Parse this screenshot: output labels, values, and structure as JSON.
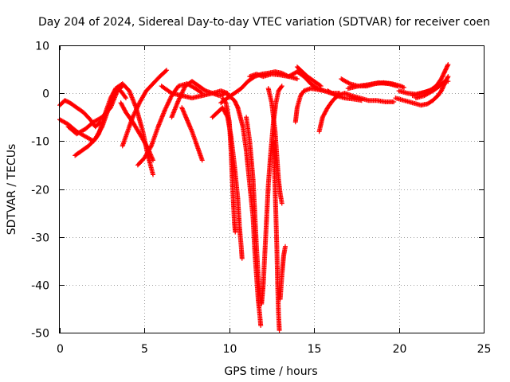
{
  "chart_data": {
    "type": "scatter",
    "title": "Day 204 of 2024, Sidereal Day-to-day VTEC variation (SDTVAR) for receiver coen",
    "xlabel": "GPS time / hours",
    "ylabel": "SDTVAR / TECUs",
    "xlim": [
      0,
      25
    ],
    "ylim": [
      -50,
      10
    ],
    "xticks": [
      0,
      5,
      10,
      15,
      20,
      25
    ],
    "yticks": [
      -50,
      -40,
      -30,
      -20,
      -10,
      0,
      10
    ],
    "xtick_labels": [
      "0",
      "5",
      "10",
      "15",
      "20",
      "25"
    ],
    "ytick_labels": [
      "-50",
      "-40",
      "-30",
      "-20",
      "-10",
      "0",
      "10"
    ],
    "grid": true,
    "marker": "+",
    "color": "#ff0000",
    "series": [
      {
        "name": "s1",
        "points": [
          [
            0.0,
            -2.5
          ],
          [
            0.3,
            -1.5
          ],
          [
            0.6,
            -2.0
          ],
          [
            1.0,
            -3.0
          ],
          [
            1.4,
            -4.0
          ],
          [
            1.8,
            -5.5
          ],
          [
            2.1,
            -7.0
          ],
          [
            2.4,
            -6.0
          ]
        ]
      },
      {
        "name": "s2",
        "points": [
          [
            0.0,
            -5.5
          ],
          [
            0.5,
            -6.5
          ],
          [
            1.0,
            -8.0
          ],
          [
            1.5,
            -9.0
          ],
          [
            2.0,
            -10.0
          ],
          [
            2.3,
            -8.5
          ],
          [
            2.7,
            -4.0
          ],
          [
            3.0,
            -1.0
          ],
          [
            3.3,
            1.0
          ],
          [
            3.6,
            0.5
          ],
          [
            3.9,
            -1.0
          ]
        ]
      },
      {
        "name": "s3",
        "points": [
          [
            0.5,
            -7.0
          ],
          [
            1.0,
            -8.5
          ],
          [
            1.5,
            -7.5
          ],
          [
            2.0,
            -6.0
          ],
          [
            2.5,
            -5.0
          ],
          [
            3.0,
            -3.0
          ],
          [
            3.4,
            0.5
          ],
          [
            3.7,
            1.5
          ]
        ]
      },
      {
        "name": "s4",
        "points": [
          [
            0.9,
            -13.0
          ],
          [
            1.3,
            -12.0
          ],
          [
            1.7,
            -11.0
          ],
          [
            2.1,
            -9.5
          ],
          [
            2.5,
            -7.0
          ],
          [
            2.9,
            -3.0
          ],
          [
            3.3,
            1.0
          ],
          [
            3.7,
            2.0
          ],
          [
            4.1,
            0.5
          ],
          [
            4.5,
            -3.0
          ],
          [
            4.9,
            -8.0
          ],
          [
            5.2,
            -13.0
          ],
          [
            5.5,
            -17.0
          ]
        ]
      },
      {
        "name": "s5",
        "points": [
          [
            3.6,
            -2.0
          ],
          [
            3.9,
            -4.0
          ],
          [
            4.3,
            -6.0
          ],
          [
            4.8,
            -9.0
          ],
          [
            5.2,
            -11.5
          ],
          [
            5.5,
            -14.0
          ]
        ]
      },
      {
        "name": "s6",
        "points": [
          [
            3.7,
            -11.0
          ],
          [
            4.0,
            -8.0
          ],
          [
            4.3,
            -5.0
          ],
          [
            4.7,
            -2.0
          ],
          [
            5.1,
            0.5
          ],
          [
            5.5,
            2.0
          ],
          [
            5.9,
            3.5
          ],
          [
            6.3,
            4.8
          ]
        ]
      },
      {
        "name": "s7",
        "points": [
          [
            4.6,
            -15.0
          ],
          [
            5.0,
            -13.5
          ],
          [
            5.4,
            -11.0
          ],
          [
            5.8,
            -7.0
          ],
          [
            6.2,
            -3.5
          ],
          [
            6.6,
            -0.5
          ],
          [
            7.0,
            1.5
          ],
          [
            7.5,
            2.0
          ],
          [
            8.0,
            1.0
          ],
          [
            8.4,
            0.0
          ]
        ]
      },
      {
        "name": "s8",
        "points": [
          [
            6.6,
            -5.0
          ],
          [
            7.0,
            -1.5
          ],
          [
            7.4,
            1.5
          ],
          [
            7.8,
            2.5
          ],
          [
            8.2,
            1.5
          ],
          [
            8.6,
            0.5
          ],
          [
            9.0,
            0.0
          ],
          [
            9.4,
            -0.5
          ],
          [
            9.8,
            0.0
          ],
          [
            10.3,
            -1.5
          ],
          [
            10.5,
            -3.0
          ]
        ]
      },
      {
        "name": "s9",
        "points": [
          [
            7.2,
            -3.0
          ],
          [
            7.5,
            -5.5
          ],
          [
            7.8,
            -8.0
          ],
          [
            8.1,
            -11.0
          ],
          [
            8.4,
            -14.0
          ]
        ]
      },
      {
        "name": "s10",
        "points": [
          [
            6.0,
            1.5
          ],
          [
            6.6,
            0.0
          ],
          [
            7.2,
            -0.5
          ],
          [
            7.8,
            -1.0
          ],
          [
            8.4,
            -0.5
          ],
          [
            9.0,
            0.0
          ],
          [
            9.5,
            0.5
          ],
          [
            9.9,
            0.0
          ]
        ]
      },
      {
        "name": "s11",
        "points": [
          [
            9.0,
            -5.0
          ],
          [
            9.3,
            -4.0
          ],
          [
            9.6,
            -3.0
          ],
          [
            9.9,
            -5.0
          ],
          [
            10.1,
            -9.0
          ],
          [
            10.3,
            -15.0
          ],
          [
            10.5,
            -22.0
          ],
          [
            10.6,
            -28.0
          ],
          [
            10.7,
            -32.0
          ],
          [
            10.75,
            -34.5
          ]
        ]
      },
      {
        "name": "s12",
        "points": [
          [
            9.6,
            -1.0
          ],
          [
            9.8,
            -2.0
          ],
          [
            10.0,
            -6.0
          ],
          [
            10.1,
            -12.0
          ],
          [
            10.2,
            -20.0
          ],
          [
            10.3,
            -27.0
          ],
          [
            10.35,
            -29.0
          ]
        ]
      },
      {
        "name": "s13",
        "points": [
          [
            9.5,
            -2.0
          ],
          [
            9.9,
            -1.0
          ],
          [
            10.3,
            0.0
          ],
          [
            10.7,
            1.0
          ],
          [
            11.1,
            2.5
          ],
          [
            11.5,
            3.5
          ],
          [
            11.9,
            4.0
          ],
          [
            12.3,
            4.2
          ],
          [
            12.7,
            4.5
          ],
          [
            13.1,
            4.2
          ],
          [
            13.5,
            3.5
          ],
          [
            14.0,
            3.0
          ]
        ]
      },
      {
        "name": "s14",
        "points": [
          [
            10.5,
            -3.0
          ],
          [
            10.8,
            -7.0
          ],
          [
            11.0,
            -12.0
          ],
          [
            11.2,
            -19.0
          ],
          [
            11.4,
            -26.0
          ],
          [
            11.5,
            -33.0
          ],
          [
            11.6,
            -38.0
          ],
          [
            11.7,
            -43.0
          ],
          [
            11.8,
            -46.5
          ],
          [
            11.85,
            -48.5
          ]
        ]
      },
      {
        "name": "s15",
        "points": [
          [
            11.0,
            -5.0
          ],
          [
            11.2,
            -10.0
          ],
          [
            11.4,
            -18.0
          ],
          [
            11.5,
            -25.0
          ],
          [
            11.6,
            -32.0
          ],
          [
            11.7,
            -38.0
          ],
          [
            11.8,
            -42.0
          ],
          [
            11.9,
            -44.0
          ],
          [
            12.0,
            -40.0
          ],
          [
            12.1,
            -33.0
          ],
          [
            12.2,
            -26.0
          ],
          [
            12.3,
            -19.0
          ],
          [
            12.45,
            -12.0
          ],
          [
            12.6,
            -6.0
          ],
          [
            12.75,
            -2.0
          ],
          [
            12.9,
            0.5
          ],
          [
            13.1,
            1.5
          ]
        ]
      },
      {
        "name": "s16",
        "points": [
          [
            12.3,
            1.0
          ],
          [
            12.5,
            -2.0
          ],
          [
            12.7,
            -8.0
          ],
          [
            12.8,
            -13.0
          ],
          [
            12.9,
            -18.0
          ],
          [
            13.0,
            -21.0
          ],
          [
            13.1,
            -23.0
          ]
        ]
      },
      {
        "name": "s17",
        "points": [
          [
            12.6,
            -10.0
          ],
          [
            12.7,
            -20.0
          ],
          [
            12.8,
            -32.0
          ],
          [
            12.85,
            -40.0
          ],
          [
            12.9,
            -46.0
          ],
          [
            12.95,
            -49.5
          ]
        ]
      },
      {
        "name": "s18",
        "points": [
          [
            13.0,
            -43.0
          ],
          [
            13.1,
            -38.0
          ],
          [
            13.2,
            -34.0
          ],
          [
            13.3,
            -32.0
          ]
        ]
      },
      {
        "name": "s19",
        "points": [
          [
            11.2,
            3.5
          ],
          [
            11.6,
            4.0
          ],
          [
            12.0,
            3.5
          ],
          [
            12.5,
            4.0
          ],
          [
            13.0,
            3.8
          ],
          [
            13.5,
            3.5
          ],
          [
            14.0,
            4.5
          ],
          [
            14.4,
            3.5
          ],
          [
            14.8,
            2.0
          ],
          [
            15.2,
            1.0
          ],
          [
            15.6,
            0.5
          ]
        ]
      },
      {
        "name": "s20",
        "points": [
          [
            13.9,
            -6.0
          ],
          [
            14.0,
            -3.0
          ],
          [
            14.2,
            -0.5
          ],
          [
            14.4,
            0.5
          ],
          [
            14.8,
            1.0
          ],
          [
            15.2,
            0.8
          ],
          [
            15.6,
            0.5
          ],
          [
            16.0,
            0.0
          ],
          [
            16.5,
            0.0
          ]
        ]
      },
      {
        "name": "s21",
        "points": [
          [
            14.0,
            5.5
          ],
          [
            14.3,
            4.5
          ],
          [
            14.6,
            3.5
          ],
          [
            15.0,
            2.5
          ],
          [
            15.4,
            1.5
          ]
        ]
      },
      {
        "name": "s22",
        "points": [
          [
            15.3,
            -8.0
          ],
          [
            15.5,
            -5.0
          ],
          [
            15.8,
            -3.0
          ],
          [
            16.1,
            -1.5
          ],
          [
            16.4,
            -0.5
          ],
          [
            16.8,
            0.0
          ],
          [
            17.2,
            -0.5
          ],
          [
            17.7,
            -1.0
          ],
          [
            18.2,
            -1.5
          ],
          [
            18.7,
            -1.5
          ],
          [
            19.2,
            -1.8
          ],
          [
            19.7,
            -1.8
          ]
        ]
      },
      {
        "name": "s23",
        "points": [
          [
            15.8,
            0.5
          ],
          [
            16.3,
            -0.5
          ],
          [
            16.8,
            -1.0
          ],
          [
            17.3,
            -1.2
          ],
          [
            17.8,
            -1.5
          ]
        ]
      },
      {
        "name": "s24",
        "points": [
          [
            16.6,
            3.0
          ],
          [
            17.1,
            2.0
          ],
          [
            17.6,
            1.5
          ],
          [
            18.1,
            1.5
          ],
          [
            18.6,
            2.0
          ],
          [
            19.1,
            2.2
          ],
          [
            19.6,
            2.0
          ],
          [
            20.1,
            1.5
          ],
          [
            20.3,
            1.2
          ]
        ]
      },
      {
        "name": "s25",
        "points": [
          [
            17.0,
            1.0
          ],
          [
            17.6,
            1.5
          ],
          [
            18.2,
            1.8
          ],
          [
            18.8,
            2.2
          ],
          [
            19.4,
            2.0
          ],
          [
            19.9,
            1.5
          ]
        ]
      },
      {
        "name": "s26",
        "points": [
          [
            19.8,
            -1.0
          ],
          [
            20.3,
            -1.5
          ],
          [
            20.8,
            -2.0
          ],
          [
            21.3,
            -2.5
          ],
          [
            21.7,
            -2.2
          ],
          [
            22.0,
            -1.5
          ],
          [
            22.3,
            -0.5
          ],
          [
            22.5,
            0.5
          ],
          [
            22.7,
            2.0
          ],
          [
            22.9,
            3.5
          ]
        ]
      },
      {
        "name": "s27",
        "points": [
          [
            20.8,
            -0.5
          ],
          [
            21.3,
            0.0
          ],
          [
            21.8,
            0.5
          ],
          [
            22.2,
            1.5
          ],
          [
            22.5,
            3.0
          ],
          [
            22.7,
            4.5
          ],
          [
            22.9,
            6.0
          ]
        ]
      },
      {
        "name": "s28",
        "points": [
          [
            21.0,
            -1.0
          ],
          [
            21.5,
            -0.5
          ],
          [
            22.0,
            0.5
          ],
          [
            22.4,
            1.5
          ],
          [
            22.7,
            2.5
          ],
          [
            22.9,
            2.5
          ]
        ]
      },
      {
        "name": "s29",
        "points": [
          [
            20.0,
            0.5
          ],
          [
            20.5,
            0.0
          ],
          [
            21.0,
            -0.2
          ],
          [
            21.5,
            0.2
          ],
          [
            22.0,
            0.8
          ]
        ]
      }
    ]
  }
}
